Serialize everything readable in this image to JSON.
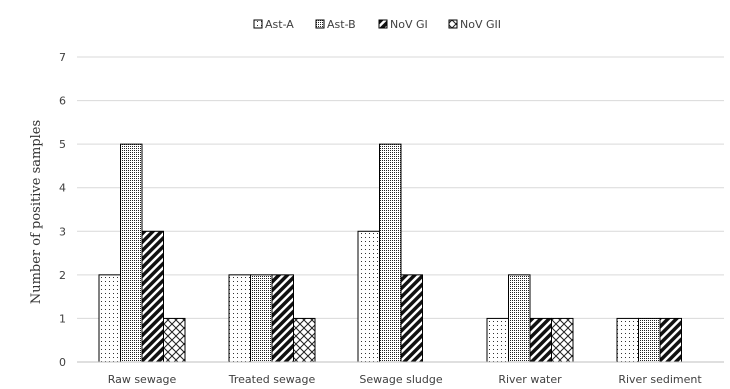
{
  "chart_data": {
    "type": "bar",
    "title": "",
    "xlabel": "",
    "ylabel": "Number of positive samples",
    "ylim": [
      0,
      7
    ],
    "yticks": [
      0,
      1,
      2,
      3,
      4,
      5,
      6,
      7
    ],
    "grid": true,
    "legend_position": "top-center",
    "categories": [
      "Raw sewage",
      "Treated sewage",
      "Sewage sludge",
      "River water",
      "River sediment"
    ],
    "series": [
      {
        "name": "Ast-A",
        "pattern": "sparse-dots",
        "values": [
          2,
          2,
          3,
          1,
          1
        ]
      },
      {
        "name": "Ast-B",
        "pattern": "dense-dots",
        "values": [
          5,
          2,
          5,
          2,
          1
        ]
      },
      {
        "name": "NoV GI",
        "pattern": "wide-diagonal",
        "values": [
          3,
          2,
          2,
          1,
          1
        ]
      },
      {
        "name": "NoV GII",
        "pattern": "crosshatch",
        "values": [
          1,
          1,
          0,
          1,
          0
        ]
      }
    ]
  }
}
